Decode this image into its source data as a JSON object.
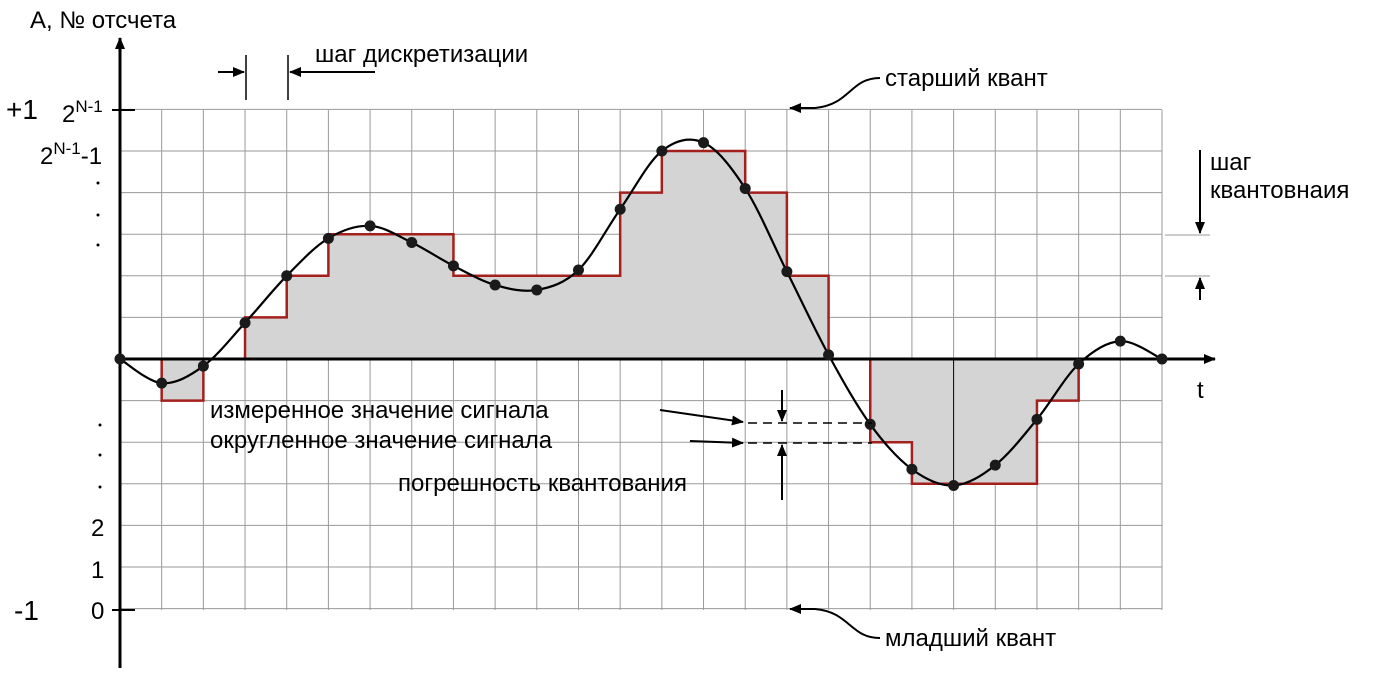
{
  "axes": {
    "y_label": "А, № отсчета",
    "x_label": "t"
  },
  "level_labels": {
    "plus_one": "+1",
    "top_code": {
      "base": "2",
      "exponent": "N-1"
    },
    "second_code": {
      "base": "2",
      "exponent": "N-1",
      "suffix": "-1"
    },
    "code_two": "2",
    "code_one": "1",
    "code_zero": "0",
    "minus_one": "-1"
  },
  "annotations": {
    "sampling_step": "шаг дискретизации",
    "msb": "старший квант",
    "lsb": "младший квант",
    "quant_step": [
      "шаг",
      "квантовнаия"
    ],
    "measured": "измеренное значение сигнала",
    "rounded": "округленное значение сигнала",
    "error": "погрешность квантования"
  }
}
